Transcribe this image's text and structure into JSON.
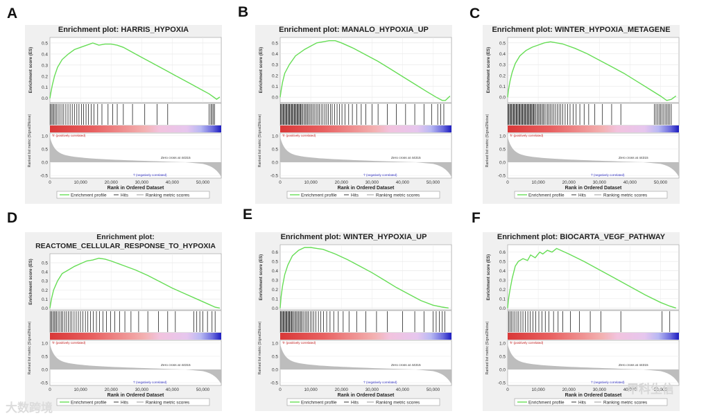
{
  "figure": {
    "watermark_left": "大数跨境",
    "watermark_right": "甲科生信"
  },
  "common": {
    "y_label_es": "Enrichment score (ES)",
    "y_label_metric": "Ranked list metric (Signal2Noise)",
    "x_label": "Rank in Ordered Dataset",
    "x_ticks": [
      "0",
      "10,000",
      "20,000",
      "30,000",
      "40,000",
      "50,000"
    ],
    "metric_ticks": [
      "1.0",
      "0.5",
      "0.0",
      "-0.5"
    ],
    "pos_corr_label": "'h' (positively correlated)",
    "neg_corr_label": "'l' (negatively correlated)",
    "zero_cross": "Zero cross at 44315",
    "legend": [
      "Enrichment profile",
      "Hits",
      "Ranking metric scores"
    ],
    "colors": {
      "enrichment": "#66dd55",
      "hits": "#000000",
      "metric": "#bdbdbd",
      "pos": "#ff0000",
      "neg": "#0000ff"
    }
  },
  "chart_data": [
    {
      "panel": "A",
      "type": "line",
      "title": "Enrichment plot: HARRIS_HYPOXIA",
      "xlabel": "Rank in Ordered Dataset",
      "ylabel": "Enrichment score (ES)",
      "x_range": [
        0,
        56000
      ],
      "ylim": [
        -0.04,
        0.55
      ],
      "y_ticks": [
        "0.5",
        "0.4",
        "0.3",
        "0.2",
        "0.1",
        "0.0"
      ],
      "x": [
        0,
        300,
        800,
        1500,
        2500,
        4000,
        6000,
        8000,
        10000,
        12000,
        14000,
        16000,
        18000,
        20000,
        22000,
        24000,
        26000,
        30000,
        34000,
        38000,
        42000,
        46000,
        50000,
        52000,
        53500,
        54500,
        55500
      ],
      "es": [
        0,
        0.05,
        0.12,
        0.2,
        0.28,
        0.35,
        0.4,
        0.44,
        0.46,
        0.48,
        0.5,
        0.48,
        0.49,
        0.49,
        0.48,
        0.46,
        0.43,
        0.37,
        0.31,
        0.25,
        0.19,
        0.13,
        0.07,
        0.04,
        0.01,
        -0.01,
        0.01
      ]
    },
    {
      "panel": "B",
      "type": "line",
      "title": "Enrichment plot: MANALO_HYPOXIA_UP",
      "xlabel": "Rank in Ordered Dataset",
      "ylabel": "Enrichment score (ES)",
      "x_range": [
        0,
        56000
      ],
      "ylim": [
        -0.05,
        0.55
      ],
      "y_ticks": [
        "0.5",
        "0.4",
        "0.3",
        "0.2",
        "0.1",
        "0.0"
      ],
      "x": [
        0,
        300,
        800,
        1500,
        3000,
        5000,
        8000,
        10000,
        12000,
        14000,
        16000,
        18000,
        20000,
        24000,
        28000,
        32000,
        36000,
        40000,
        44000,
        48000,
        51000,
        53000,
        54000,
        55500
      ],
      "es": [
        0,
        0.06,
        0.14,
        0.22,
        0.3,
        0.38,
        0.44,
        0.47,
        0.5,
        0.51,
        0.52,
        0.52,
        0.5,
        0.45,
        0.39,
        0.33,
        0.26,
        0.19,
        0.12,
        0.05,
        0.0,
        -0.03,
        -0.03,
        0.01
      ]
    },
    {
      "panel": "C",
      "type": "line",
      "title": "Enrichment plot: WINTER_HYPOXIA_METAGENE",
      "xlabel": "Rank in Ordered Dataset",
      "ylabel": "Enrichment score (ES)",
      "x_range": [
        0,
        56000
      ],
      "ylim": [
        -0.05,
        0.55
      ],
      "y_ticks": [
        "0.5",
        "0.4",
        "0.3",
        "0.2",
        "0.1",
        "0.0"
      ],
      "x": [
        0,
        300,
        800,
        1500,
        2500,
        4000,
        6000,
        8000,
        10000,
        12000,
        14000,
        16000,
        18000,
        22000,
        26000,
        30000,
        34000,
        38000,
        42000,
        46000,
        50000,
        52000,
        53500,
        55000
      ],
      "es": [
        0,
        0.07,
        0.15,
        0.23,
        0.31,
        0.38,
        0.43,
        0.46,
        0.48,
        0.5,
        0.51,
        0.5,
        0.49,
        0.45,
        0.4,
        0.34,
        0.28,
        0.22,
        0.15,
        0.08,
        0.01,
        -0.03,
        -0.02,
        0.01
      ]
    },
    {
      "panel": "D",
      "type": "line",
      "title": "Enrichment plot: REACTOME_CELLULAR_RESPONSE_TO_HYPOXIA",
      "xlabel": "Rank in Ordered Dataset",
      "ylabel": "Enrichment score (ES)",
      "x_range": [
        0,
        56000
      ],
      "ylim": [
        -0.02,
        0.6
      ],
      "y_ticks": [
        "0.5",
        "0.4",
        "0.3",
        "0.2",
        "0.1",
        "0.0"
      ],
      "x": [
        0,
        500,
        1200,
        2500,
        4000,
        6000,
        8000,
        10000,
        12000,
        14000,
        16000,
        18000,
        20000,
        24000,
        28000,
        32000,
        36000,
        40000,
        44000,
        48000,
        52000,
        54000,
        55500
      ],
      "es": [
        0,
        0.1,
        0.2,
        0.3,
        0.38,
        0.42,
        0.46,
        0.49,
        0.52,
        0.53,
        0.55,
        0.54,
        0.52,
        0.47,
        0.42,
        0.36,
        0.29,
        0.22,
        0.16,
        0.1,
        0.04,
        0.01,
        0.0
      ]
    },
    {
      "panel": "E",
      "type": "line",
      "title": "Enrichment plot: WINTER_HYPOXIA_UP",
      "xlabel": "Rank in Ordered Dataset",
      "ylabel": "Enrichment score (ES)",
      "x_range": [
        0,
        56000
      ],
      "ylim": [
        -0.02,
        0.68
      ],
      "y_ticks": [
        "0.6",
        "0.5",
        "0.4",
        "0.3",
        "0.2",
        "0.1",
        "0.0"
      ],
      "x": [
        0,
        300,
        800,
        1500,
        2500,
        4000,
        6000,
        8000,
        10000,
        12000,
        14000,
        18000,
        22000,
        26000,
        30000,
        34000,
        38000,
        42000,
        46000,
        50000,
        53000,
        55000
      ],
      "es": [
        0,
        0.12,
        0.24,
        0.36,
        0.46,
        0.56,
        0.62,
        0.65,
        0.65,
        0.64,
        0.63,
        0.58,
        0.52,
        0.45,
        0.38,
        0.3,
        0.22,
        0.15,
        0.08,
        0.03,
        0.01,
        0.0
      ]
    },
    {
      "panel": "F",
      "type": "line",
      "title": "Enrichment plot: BIOCARTA_VEGF_PATHWAY",
      "xlabel": "Rank in Ordered Dataset",
      "ylabel": "Enrichment score (ES)",
      "x_range": [
        0,
        56000
      ],
      "ylim": [
        -0.02,
        0.68
      ],
      "y_ticks": [
        "0.6",
        "0.5",
        "0.4",
        "0.3",
        "0.2",
        "0.1",
        "0.0"
      ],
      "x": [
        0,
        300,
        800,
        1500,
        2500,
        3500,
        5000,
        6500,
        7500,
        9000,
        10500,
        11500,
        13000,
        14500,
        16000,
        20000,
        25000,
        30000,
        35000,
        40000,
        45000,
        50000,
        53000,
        55000
      ],
      "es": [
        0,
        0.1,
        0.2,
        0.32,
        0.45,
        0.5,
        0.53,
        0.51,
        0.57,
        0.54,
        0.6,
        0.58,
        0.62,
        0.6,
        0.64,
        0.58,
        0.5,
        0.41,
        0.32,
        0.23,
        0.14,
        0.06,
        0.02,
        0.0
      ]
    }
  ],
  "hits": {
    "A": [
      150,
      500,
      900,
      1300,
      1700,
      2200,
      2700,
      3300,
      3900,
      4500,
      5200,
      5900,
      6600,
      7300,
      8000,
      8800,
      9500,
      10300,
      11000,
      11800,
      12600,
      13500,
      14400,
      15600,
      17000,
      19000,
      20500,
      22000,
      24000,
      27000,
      31000,
      35000,
      38500,
      52000,
      52600,
      53000,
      53400,
      53800
    ],
    "B": [
      100,
      400,
      700,
      1000,
      1300,
      1600,
      1900,
      2200,
      2500,
      2800,
      3100,
      3400,
      3700,
      4000,
      4300,
      4600,
      4900,
      5200,
      5500,
      5800,
      6100,
      6400,
      6700,
      7000,
      7400,
      7800,
      8200,
      8600,
      9000,
      9400,
      9800,
      10300,
      10800,
      11300,
      11800,
      12300,
      12800,
      13400,
      14000,
      14600,
      15200,
      15800,
      16400,
      17000,
      17800,
      18600,
      19400,
      20200,
      21200,
      22400,
      23600,
      25000,
      26500,
      28000,
      30000,
      32000,
      35000,
      38000,
      41000,
      44000,
      47000,
      49500,
      51500,
      52500,
      53500
    ],
    "C": [
      100,
      400,
      700,
      1000,
      1300,
      1600,
      1900,
      2200,
      2500,
      2800,
      3100,
      3400,
      3700,
      4000,
      4300,
      4600,
      4900,
      5200,
      5500,
      5800,
      6100,
      6400,
      6700,
      7000,
      7300,
      7600,
      7900,
      8200,
      8500,
      8800,
      9200,
      9600,
      10000,
      10400,
      10800,
      11200,
      11600,
      12000,
      12500,
      13000,
      13500,
      14000,
      14500,
      15000,
      15600,
      16200,
      16800,
      17400,
      18000,
      18800,
      19600,
      20400,
      21400,
      22400,
      23600,
      25000,
      26500,
      28500,
      31000,
      34000,
      37000,
      48000,
      48500,
      49000,
      49500,
      50000,
      50500,
      51000,
      51500,
      52000,
      52500,
      53000,
      53500
    ],
    "D": [
      200,
      600,
      1000,
      1400,
      1800,
      2200,
      2700,
      3200,
      3700,
      4200,
      4800,
      5400,
      6000,
      6600,
      7200,
      7900,
      8600,
      9300,
      10000,
      10800,
      11600,
      12400,
      13300,
      14200,
      15200,
      16200,
      17300,
      18500,
      19800,
      21200,
      22800,
      24500,
      26500,
      29000,
      32000,
      35500,
      38500,
      41000,
      47000,
      48000,
      49000,
      50000,
      51500,
      53000,
      54000
    ],
    "E": [
      100,
      400,
      700,
      1000,
      1300,
      1600,
      1900,
      2200,
      2500,
      2800,
      3100,
      3400,
      3700,
      4000,
      4400,
      4800,
      5200,
      5600,
      6000,
      6400,
      6800,
      7200,
      7700,
      8200,
      8700,
      9200,
      9800,
      10400,
      11000,
      11700,
      12500,
      13300,
      14200,
      15200,
      16300,
      17500,
      19000,
      20600,
      22500,
      25000,
      28000,
      31500,
      35000,
      40000,
      44000,
      47000,
      50000,
      51000,
      52000,
      53000,
      53800
    ],
    "F": [
      300,
      800,
      1300,
      1800,
      2400,
      3000,
      3600,
      4300,
      5000,
      5800,
      6600,
      7400,
      8300,
      9200,
      10200,
      11200,
      12300,
      13500,
      15000,
      16500,
      18000,
      20500,
      23500,
      27000,
      30500,
      37000,
      50500,
      53000
    ]
  }
}
